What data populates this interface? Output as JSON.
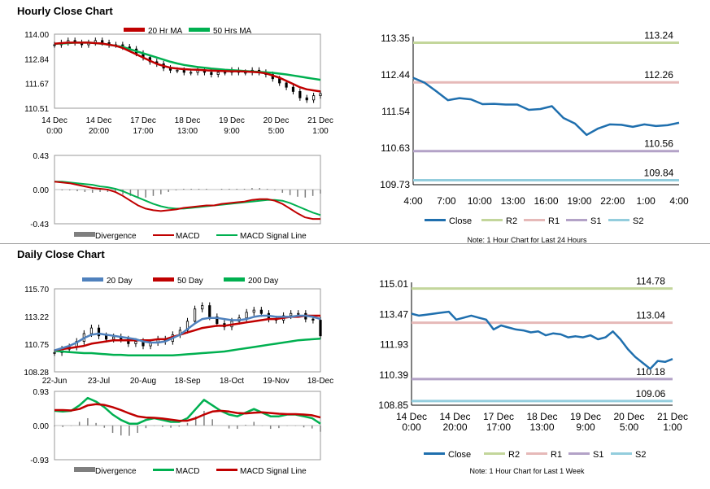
{
  "sections": {
    "hourly_title": "Hourly Close Chart",
    "daily_title": "Daily Close Chart"
  },
  "colors": {
    "ma_short": "#c00000",
    "ma_long": "#00b050",
    "ma_blue": "#4f81bd",
    "close_line": "#1f6fae",
    "r2": "#c3d69b",
    "r1": "#e6b9b8",
    "s1": "#b3a2c7",
    "s2": "#93cddd",
    "divergence": "#7f7f7f",
    "candle": "#000000"
  },
  "chart_data": [
    {
      "id": "hourly_price",
      "type": "candlestick",
      "legend": [
        "20 Hr MA",
        "50 Hrs MA"
      ],
      "yticks": [
        "114.00",
        "112.84",
        "111.67",
        "110.51"
      ],
      "ylim": [
        110.51,
        114.0
      ],
      "xticks": [
        "14 Dec\n0:00",
        "14 Dec\n20:00",
        "17 Dec\n17:00",
        "18 Dec\n13:00",
        "19 Dec\n9:00",
        "20 Dec\n5:00",
        "21 Dec\n1:00"
      ],
      "close": [
        113.5,
        113.6,
        113.7,
        113.6,
        113.5,
        113.6,
        113.7,
        113.6,
        113.5,
        113.5,
        113.4,
        113.3,
        113.1,
        112.9,
        112.7,
        112.6,
        112.4,
        112.3,
        112.3,
        112.2,
        112.2,
        112.3,
        112.2,
        112.1,
        112.2,
        112.2,
        112.3,
        112.2,
        112.2,
        112.3,
        112.2,
        112.1,
        111.9,
        111.7,
        111.5,
        111.3,
        111.0,
        110.9,
        111.1,
        111.2
      ],
      "ma20": [
        113.55,
        113.58,
        113.6,
        113.6,
        113.6,
        113.6,
        113.58,
        113.56,
        113.5,
        113.45,
        113.35,
        113.2,
        113.05,
        112.9,
        112.75,
        112.6,
        112.5,
        112.42,
        112.38,
        112.35,
        112.33,
        112.32,
        112.3,
        112.28,
        112.27,
        112.26,
        112.25,
        112.25,
        112.24,
        112.22,
        112.2,
        112.15,
        112.05,
        111.95,
        111.8,
        111.65,
        111.5,
        111.4,
        111.35,
        111.3
      ],
      "ma50": [
        113.55,
        113.56,
        113.58,
        113.6,
        113.6,
        113.6,
        113.58,
        113.55,
        113.5,
        113.45,
        113.4,
        113.3,
        113.2,
        113.1,
        113.0,
        112.9,
        112.8,
        112.7,
        112.62,
        112.55,
        112.5,
        112.45,
        112.42,
        112.38,
        112.35,
        112.32,
        112.3,
        112.28,
        112.26,
        112.24,
        112.22,
        112.2,
        112.18,
        112.14,
        112.1,
        112.05,
        112.0,
        111.95,
        111.9,
        111.85
      ]
    },
    {
      "id": "hourly_macd",
      "type": "macd",
      "yticks": [
        "0.43",
        "0.00",
        "-0.43"
      ],
      "ylim": [
        -0.43,
        0.43
      ],
      "legend": [
        "Divergence",
        "MACD",
        "MACD Signal Line"
      ],
      "macd": [
        0.1,
        0.09,
        0.08,
        0.06,
        0.04,
        0.02,
        0.01,
        0.0,
        -0.03,
        -0.08,
        -0.14,
        -0.2,
        -0.24,
        -0.26,
        -0.27,
        -0.26,
        -0.25,
        -0.23,
        -0.22,
        -0.21,
        -0.2,
        -0.2,
        -0.18,
        -0.17,
        -0.16,
        -0.15,
        -0.13,
        -0.12,
        -0.12,
        -0.14,
        -0.18,
        -0.24,
        -0.3,
        -0.35,
        -0.37,
        -0.37
      ],
      "signal": [
        0.1,
        0.1,
        0.09,
        0.08,
        0.07,
        0.06,
        0.04,
        0.03,
        0.01,
        -0.02,
        -0.06,
        -0.1,
        -0.14,
        -0.18,
        -0.21,
        -0.23,
        -0.24,
        -0.24,
        -0.23,
        -0.22,
        -0.21,
        -0.2,
        -0.19,
        -0.18,
        -0.17,
        -0.16,
        -0.15,
        -0.14,
        -0.13,
        -0.13,
        -0.14,
        -0.17,
        -0.21,
        -0.25,
        -0.29,
        -0.32
      ],
      "divergence": [
        0.0,
        -0.01,
        -0.01,
        -0.02,
        -0.03,
        -0.04,
        -0.03,
        -0.03,
        -0.04,
        -0.06,
        -0.08,
        -0.1,
        -0.1,
        -0.08,
        -0.06,
        -0.03,
        -0.01,
        0.01,
        0.01,
        0.01,
        0.01,
        0.0,
        0.01,
        0.01,
        0.01,
        0.01,
        0.02,
        0.02,
        0.01,
        -0.01,
        -0.04,
        -0.07,
        -0.09,
        -0.1,
        -0.08,
        -0.05
      ]
    },
    {
      "id": "hourly_levels",
      "type": "line",
      "yticks": [
        "113.35",
        "112.44",
        "111.54",
        "110.63",
        "109.73"
      ],
      "ylim": [
        109.73,
        113.35
      ],
      "xticks": [
        "4:00",
        "7:00",
        "10:00",
        "13:00",
        "16:00",
        "19:00",
        "22:00",
        "1:00",
        "4:00"
      ],
      "close": [
        112.37,
        112.25,
        112.04,
        111.82,
        111.87,
        111.84,
        111.72,
        111.73,
        111.71,
        111.71,
        111.58,
        111.6,
        111.67,
        111.38,
        111.24,
        110.96,
        111.12,
        111.22,
        111.21,
        111.16,
        111.22,
        111.18,
        111.2,
        111.26
      ],
      "levels": {
        "R2": 113.24,
        "R1": 112.26,
        "S1": 110.56,
        "S2": 109.84
      },
      "level_labels": [
        "113.24",
        "112.26",
        "110.56",
        "109.84"
      ],
      "legend": [
        "Close",
        "R2",
        "R1",
        "S1",
        "S2"
      ],
      "note": "Note: 1 Hour Chart for Last 24 Hours"
    },
    {
      "id": "daily_price",
      "type": "candlestick",
      "legend": [
        "20 Day",
        "50 Day",
        "200 Day"
      ],
      "yticks": [
        "115.70",
        "113.22",
        "110.75",
        "108.28"
      ],
      "ylim": [
        108.28,
        115.7
      ],
      "xticks": [
        "22-Jun",
        "23-Jul",
        "20-Aug",
        "18-Sep",
        "18-Oct",
        "19-Nov",
        "18-Dec"
      ],
      "close": [
        110.0,
        110.3,
        110.5,
        111.0,
        111.7,
        112.2,
        111.5,
        111.2,
        111.4,
        111.2,
        110.8,
        111.0,
        110.6,
        110.9,
        111.2,
        111.0,
        111.6,
        112.0,
        112.8,
        113.9,
        114.2,
        113.2,
        112.6,
        112.3,
        112.8,
        113.1,
        113.6,
        113.8,
        113.5,
        113.0,
        112.9,
        113.3,
        113.5,
        113.5,
        113.0,
        112.9,
        111.5
      ],
      "ma20": [
        110.2,
        110.4,
        110.6,
        110.9,
        111.3,
        111.6,
        111.7,
        111.6,
        111.5,
        111.4,
        111.3,
        111.2,
        111.0,
        110.9,
        110.9,
        111.0,
        111.3,
        111.6,
        112.1,
        112.6,
        113.0,
        113.1,
        113.1,
        113.0,
        112.9,
        112.9,
        113.0,
        113.2,
        113.3,
        113.3,
        113.2,
        113.2,
        113.2,
        113.3,
        113.3,
        113.2,
        113.0
      ],
      "ma50": [
        110.2,
        110.3,
        110.4,
        110.5,
        110.6,
        110.8,
        110.9,
        111.0,
        111.1,
        111.1,
        111.1,
        111.1,
        111.1,
        111.1,
        111.2,
        111.2,
        111.4,
        111.6,
        111.8,
        112.0,
        112.2,
        112.3,
        112.4,
        112.4,
        112.5,
        112.6,
        112.7,
        112.8,
        112.9,
        113.0,
        113.0,
        113.1,
        113.2,
        113.2,
        113.3,
        113.3,
        113.3
      ],
      "ma200": [
        110.15,
        110.1,
        110.05,
        110.0,
        109.95,
        109.95,
        109.9,
        109.85,
        109.8,
        109.8,
        109.75,
        109.75,
        109.75,
        109.75,
        109.75,
        109.75,
        109.75,
        109.8,
        109.85,
        109.9,
        109.95,
        110.0,
        110.05,
        110.1,
        110.2,
        110.3,
        110.4,
        110.5,
        110.6,
        110.7,
        110.8,
        110.9,
        111.0,
        111.1,
        111.15,
        111.2,
        111.25
      ]
    },
    {
      "id": "daily_macd",
      "type": "macd",
      "yticks": [
        "0.93",
        "0.00",
        "-0.93"
      ],
      "ylim": [
        -0.93,
        0.93
      ],
      "legend": [
        "Divergence",
        "MACD",
        "MACD Signal Line"
      ],
      "macd": [
        0.4,
        0.38,
        0.4,
        0.55,
        0.75,
        0.65,
        0.5,
        0.3,
        0.15,
        0.05,
        0.05,
        0.15,
        0.2,
        0.15,
        0.1,
        0.1,
        0.2,
        0.45,
        0.7,
        0.55,
        0.4,
        0.3,
        0.25,
        0.35,
        0.45,
        0.35,
        0.25,
        0.25,
        0.3,
        0.3,
        0.25,
        0.2,
        0.05
      ],
      "signal": [
        0.42,
        0.42,
        0.41,
        0.45,
        0.55,
        0.58,
        0.56,
        0.5,
        0.42,
        0.33,
        0.25,
        0.22,
        0.21,
        0.19,
        0.16,
        0.13,
        0.13,
        0.2,
        0.3,
        0.38,
        0.4,
        0.38,
        0.34,
        0.33,
        0.35,
        0.36,
        0.34,
        0.32,
        0.31,
        0.31,
        0.3,
        0.28,
        0.22
      ],
      "divergence": [
        -0.02,
        -0.04,
        -0.01,
        0.1,
        0.2,
        0.07,
        -0.06,
        -0.2,
        -0.27,
        -0.28,
        -0.2,
        -0.07,
        -0.01,
        -0.04,
        -0.06,
        -0.03,
        0.07,
        0.25,
        0.4,
        0.17,
        0.0,
        -0.08,
        -0.09,
        0.02,
        0.1,
        -0.01,
        -0.09,
        -0.07,
        -0.01,
        -0.01,
        -0.05,
        -0.08,
        -0.17
      ]
    },
    {
      "id": "daily_levels",
      "type": "line",
      "yticks": [
        "115.01",
        "113.47",
        "111.93",
        "110.39",
        "108.85"
      ],
      "ylim": [
        108.85,
        115.01
      ],
      "xticks": [
        "14 Dec\n0:00",
        "14 Dec\n20:00",
        "17 Dec\n17:00",
        "18 Dec\n13:00",
        "19 Dec\n9:00",
        "20 Dec\n5:00",
        "21 Dec\n1:00"
      ],
      "close": [
        113.5,
        113.4,
        113.45,
        113.5,
        113.55,
        113.6,
        113.2,
        113.3,
        113.4,
        113.3,
        113.2,
        112.7,
        112.9,
        112.8,
        112.7,
        112.65,
        112.55,
        112.6,
        112.4,
        112.5,
        112.45,
        112.3,
        112.35,
        112.3,
        112.4,
        112.2,
        112.3,
        112.6,
        112.2,
        111.7,
        111.3,
        111.0,
        110.7,
        111.1,
        111.05,
        111.2
      ],
      "levels": {
        "R2": 114.78,
        "R1": 113.04,
        "S1": 110.18,
        "S2": 109.06
      },
      "level_labels": [
        "114.78",
        "113.04",
        "110.18",
        "109.06"
      ],
      "legend": [
        "Close",
        "R2",
        "R1",
        "S1",
        "S2"
      ],
      "note": "Note: 1 Hour Chart for Last 1 Week"
    }
  ]
}
